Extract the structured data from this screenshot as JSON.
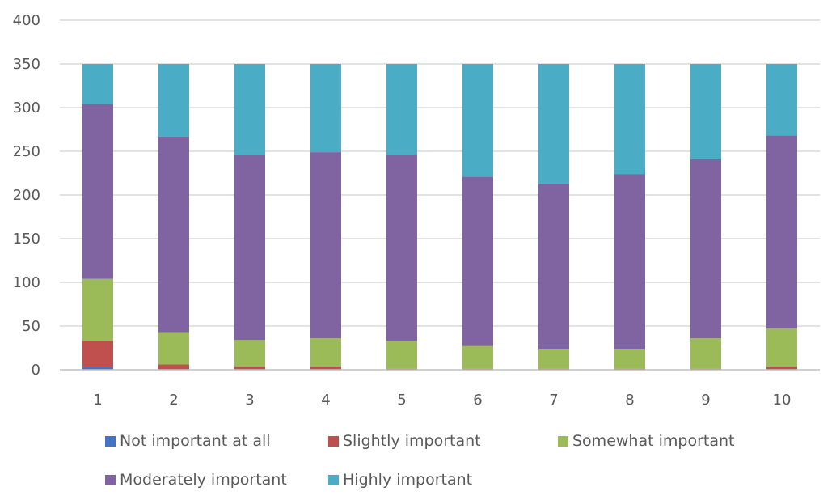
{
  "chart_data": {
    "type": "bar",
    "stacked": true,
    "categories": [
      "1",
      "2",
      "3",
      "4",
      "5",
      "6",
      "7",
      "8",
      "9",
      "10"
    ],
    "series": [
      {
        "name": "Not important at all",
        "color": "#4472C4",
        "values": [
          3,
          0,
          0,
          0,
          0,
          0,
          0,
          0,
          0,
          0
        ]
      },
      {
        "name": "Slightly important",
        "color": "#C0504D",
        "values": [
          30,
          6,
          4,
          4,
          1,
          1,
          1,
          1,
          1,
          4
        ]
      },
      {
        "name": "Somewhat important",
        "color": "#9BBB59",
        "values": [
          71,
          37,
          30,
          32,
          32,
          26,
          23,
          23,
          35,
          43
        ]
      },
      {
        "name": "Moderately important",
        "color": "#8064A2",
        "values": [
          200,
          224,
          212,
          213,
          213,
          194,
          189,
          200,
          205,
          221
        ]
      },
      {
        "name": "Highly important",
        "color": "#4BACC6",
        "values": [
          46,
          83,
          104,
          101,
          104,
          129,
          137,
          126,
          109,
          82
        ]
      }
    ],
    "title": "",
    "xlabel": "",
    "ylabel": "",
    "ylim": [
      0,
      400
    ],
    "yticks": [
      "0",
      "50",
      "100",
      "150",
      "200",
      "250",
      "300",
      "350",
      "400"
    ],
    "grid": true,
    "legend_position": "bottom"
  }
}
